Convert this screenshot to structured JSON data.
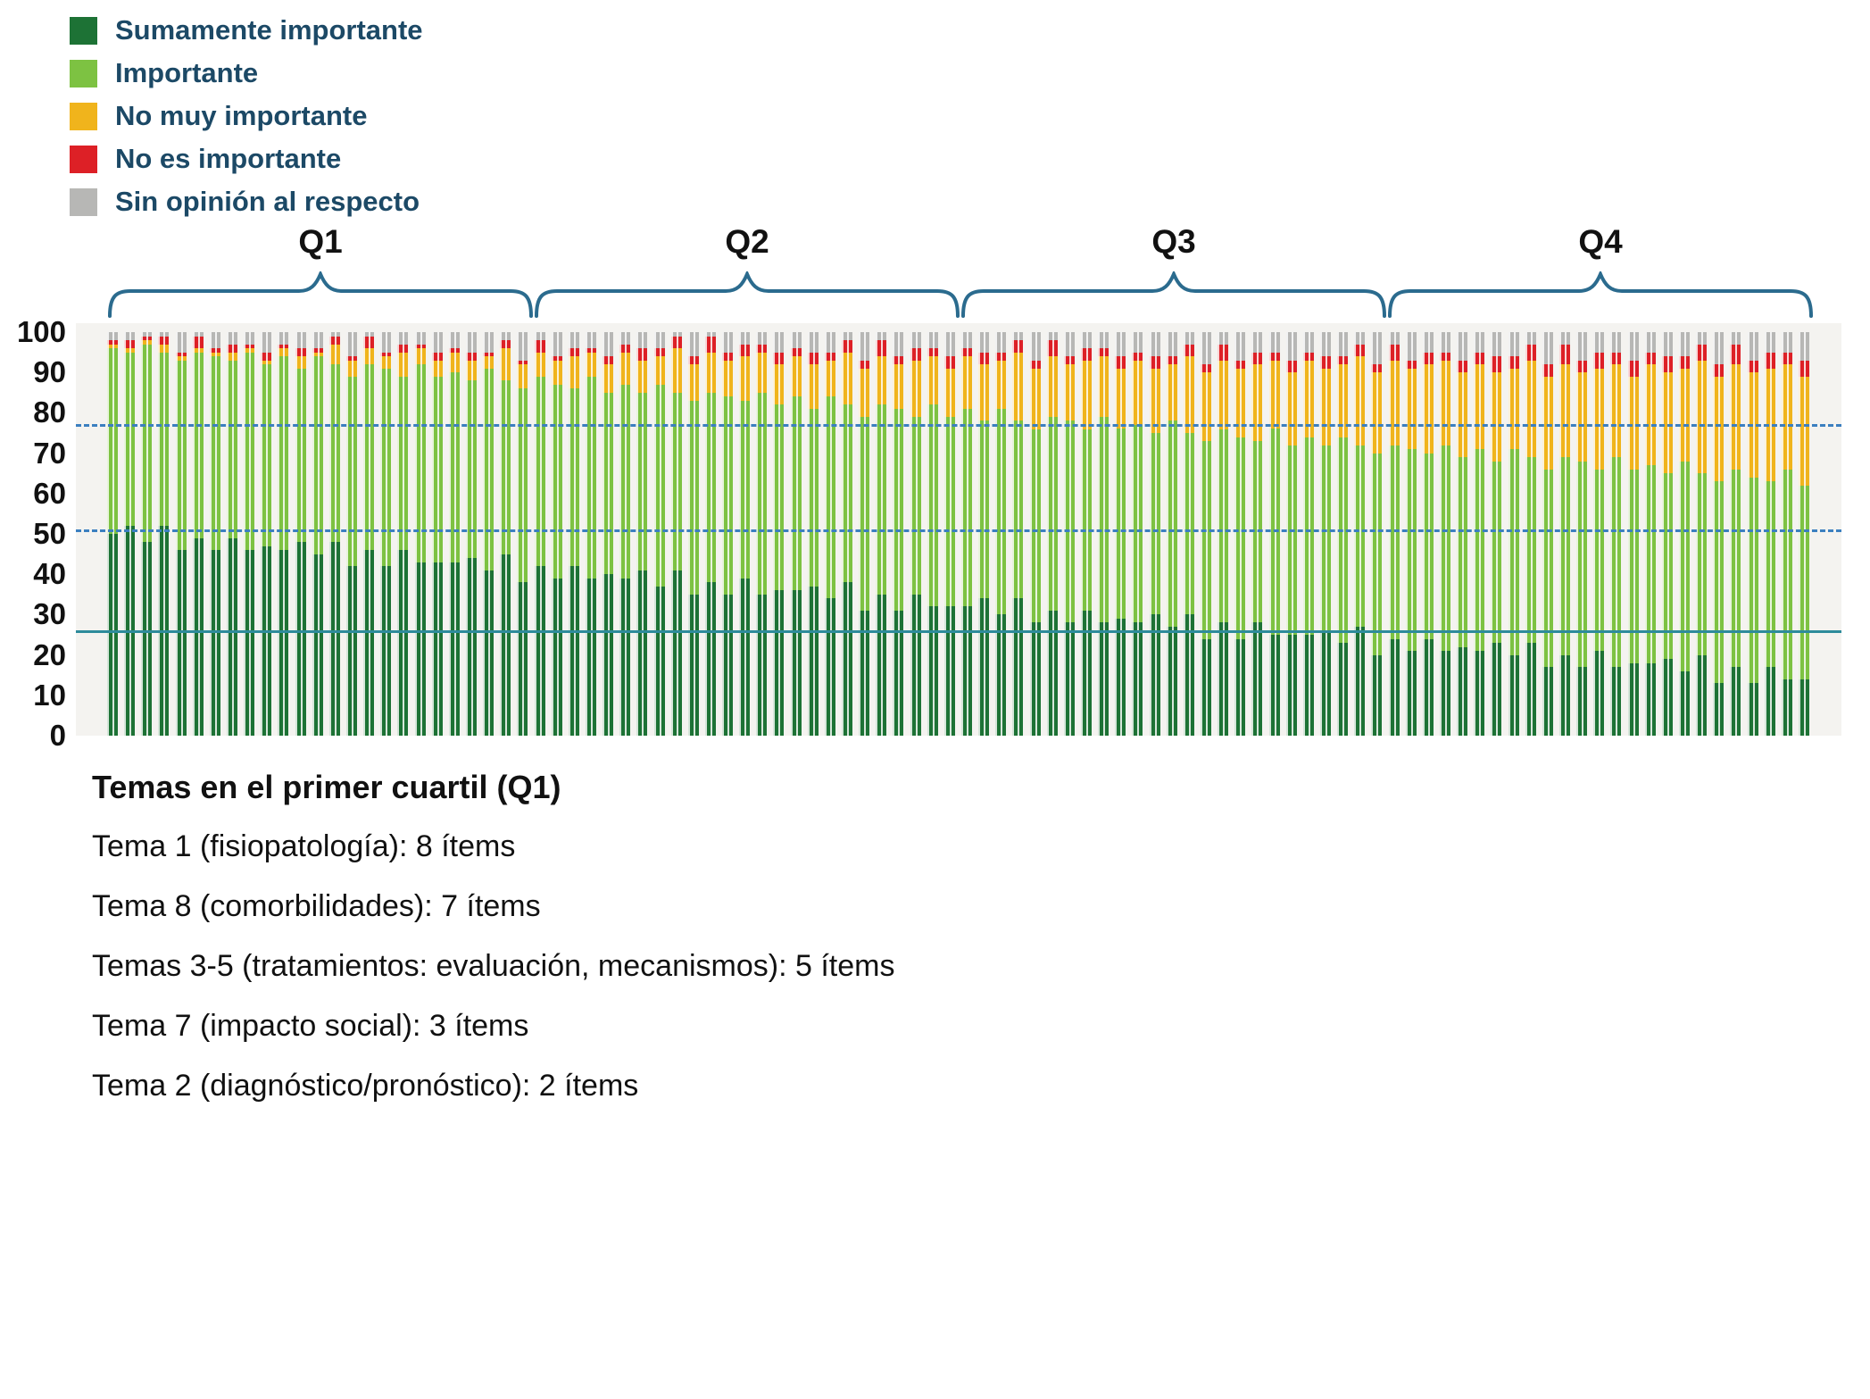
{
  "legend": {
    "items": [
      {
        "key": "sumamente",
        "label": "Sumamente importante",
        "color": "#1d7235"
      },
      {
        "key": "importante",
        "label": "Importante",
        "color": "#7dc242"
      },
      {
        "key": "no_muy",
        "label": "No muy importante",
        "color": "#f0b41c"
      },
      {
        "key": "no_es",
        "label": "No es importante",
        "color": "#dd2026"
      },
      {
        "key": "sin_opinion",
        "label": "Sin opinión al respecto",
        "color": "#b7b7b5"
      }
    ]
  },
  "y_axis": {
    "ticks": [
      0,
      10,
      20,
      30,
      40,
      50,
      60,
      70,
      80,
      90,
      100
    ]
  },
  "chart_data": {
    "type": "bar",
    "stacked": true,
    "percent": true,
    "title": "",
    "xlabel": "",
    "ylabel": "",
    "ylim": [
      0,
      100
    ],
    "legend_position": "top-left",
    "grid": false,
    "quartile_groups": [
      {
        "label": "Q1",
        "bars": 25
      },
      {
        "label": "Q2",
        "bars": 25
      },
      {
        "label": "Q3",
        "bars": 25
      },
      {
        "label": "Q4",
        "bars": 25
      }
    ],
    "reference_lines": [
      {
        "value": 76.5,
        "style": "dashed",
        "color": "#3b7fc0"
      },
      {
        "value": 50.5,
        "style": "dashed",
        "color": "#3b7fc0"
      },
      {
        "value": 25.5,
        "style": "solid",
        "color": "#2e8b9b"
      }
    ],
    "series": [
      {
        "name": "Sumamente importante",
        "key": "sumamente",
        "color": "#1d7235",
        "values": [
          50,
          52,
          48,
          52,
          46,
          49,
          46,
          49,
          46,
          47,
          46,
          48,
          45,
          48,
          42,
          46,
          42,
          46,
          43,
          43,
          43,
          44,
          41,
          45,
          38,
          42,
          39,
          42,
          39,
          40,
          39,
          41,
          37,
          41,
          35,
          38,
          35,
          39,
          35,
          36,
          36,
          37,
          34,
          38,
          31,
          35,
          31,
          35,
          32,
          32,
          32,
          34,
          30,
          34,
          28,
          31,
          28,
          31,
          28,
          29,
          28,
          30,
          27,
          30,
          24,
          28,
          24,
          28,
          25,
          25,
          25,
          26,
          23,
          27,
          20,
          24,
          21,
          24,
          21,
          22,
          21,
          23,
          20,
          23,
          17,
          20,
          17,
          21,
          17,
          18,
          18,
          19,
          16,
          20,
          13,
          17,
          13,
          17,
          14,
          14
        ]
      },
      {
        "name": "Importante",
        "key": "importante",
        "color": "#7dc242",
        "values": [
          46,
          43,
          49,
          43,
          47,
          46,
          48,
          44,
          49,
          45,
          48,
          43,
          49,
          44,
          47,
          46,
          49,
          43,
          49,
          46,
          47,
          44,
          50,
          43,
          48,
          47,
          48,
          44,
          50,
          45,
          48,
          44,
          50,
          44,
          48,
          47,
          49,
          44,
          50,
          46,
          48,
          44,
          50,
          44,
          48,
          47,
          50,
          44,
          50,
          47,
          49,
          44,
          51,
          44,
          48,
          48,
          50,
          45,
          51,
          47,
          49,
          45,
          51,
          45,
          49,
          48,
          50,
          45,
          51,
          47,
          49,
          46,
          51,
          45,
          50,
          48,
          50,
          46,
          51,
          47,
          50,
          45,
          51,
          46,
          49,
          49,
          51,
          45,
          52,
          48,
          49,
          46,
          52,
          45,
          50,
          49,
          51,
          46,
          52,
          48
        ]
      },
      {
        "name": "No muy importante",
        "key": "no_muy",
        "color": "#f0b41c",
        "values": [
          1,
          1,
          1,
          2,
          1,
          1,
          1,
          2,
          1,
          1,
          2,
          3,
          1,
          5,
          4,
          4,
          3,
          6,
          4,
          4,
          5,
          5,
          3,
          8,
          6,
          6,
          6,
          8,
          6,
          7,
          8,
          8,
          7,
          11,
          9,
          10,
          9,
          11,
          10,
          10,
          10,
          11,
          9,
          13,
          12,
          12,
          11,
          14,
          12,
          12,
          13,
          14,
          12,
          17,
          15,
          15,
          14,
          17,
          15,
          15,
          16,
          16,
          14,
          19,
          17,
          17,
          17,
          19,
          17,
          18,
          19,
          19,
          18,
          22,
          20,
          21,
          20,
          22,
          21,
          21,
          21,
          22,
          20,
          24,
          23,
          23,
          22,
          25,
          23,
          23,
          25,
          25,
          23,
          28,
          26,
          26,
          26,
          28,
          26,
          27
        ]
      },
      {
        "name": "No es importante",
        "key": "no_es",
        "color": "#dd2026",
        "values": [
          1,
          2,
          1,
          2,
          1,
          3,
          1,
          2,
          1,
          2,
          1,
          2,
          1,
          2,
          1,
          3,
          1,
          2,
          1,
          2,
          1,
          2,
          1,
          2,
          1,
          3,
          1,
          2,
          1,
          2,
          2,
          3,
          2,
          3,
          2,
          4,
          2,
          3,
          2,
          3,
          2,
          3,
          2,
          3,
          2,
          4,
          2,
          3,
          2,
          3,
          2,
          3,
          2,
          3,
          2,
          4,
          2,
          3,
          2,
          3,
          2,
          3,
          2,
          3,
          2,
          4,
          2,
          3,
          2,
          3,
          2,
          3,
          2,
          3,
          2,
          4,
          2,
          3,
          2,
          3,
          3,
          4,
          3,
          4,
          3,
          5,
          3,
          4,
          3,
          4,
          3,
          4,
          3,
          4,
          3,
          5,
          3,
          4,
          3,
          4
        ]
      },
      {
        "name": "Sin opinión al respecto",
        "key": "sin_opinion",
        "color": "#b7b7b5",
        "values": [
          2,
          2,
          1,
          1,
          5,
          1,
          4,
          3,
          3,
          5,
          3,
          4,
          4,
          1,
          6,
          1,
          5,
          3,
          3,
          5,
          4,
          5,
          5,
          2,
          7,
          2,
          6,
          4,
          4,
          6,
          3,
          4,
          4,
          1,
          6,
          1,
          5,
          3,
          3,
          5,
          4,
          5,
          5,
          2,
          7,
          2,
          6,
          4,
          4,
          6,
          4,
          5,
          5,
          2,
          7,
          2,
          6,
          4,
          4,
          6,
          5,
          6,
          6,
          3,
          8,
          3,
          7,
          5,
          5,
          7,
          5,
          6,
          6,
          3,
          8,
          3,
          7,
          5,
          5,
          7,
          5,
          6,
          6,
          3,
          8,
          3,
          7,
          5,
          5,
          7,
          5,
          6,
          6,
          3,
          8,
          3,
          7,
          5,
          5,
          7
        ]
      }
    ]
  },
  "notes": {
    "heading": "Temas en el primer cuartil (Q1)",
    "lines": [
      "Tema 1 (fisiopatología): 8 ítems",
      "Tema 8 (comorbilidades): 7 ítems",
      "Temas 3-5 (tratamientos: evaluación, mecanismos): 5 ítems",
      "Tema 7 (impacto social): 3 ítems",
      "Tema 2 (diagnóstico/pronóstico): 2 ítems"
    ]
  }
}
